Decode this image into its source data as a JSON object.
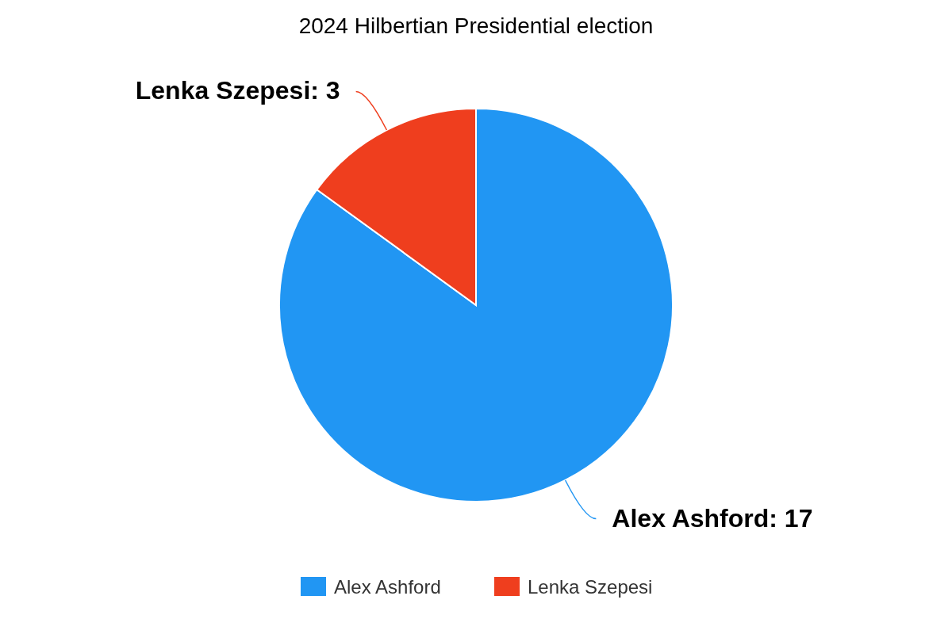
{
  "chart_data": {
    "type": "pie",
    "title": "2024 Hilbertian Presidential election",
    "categories": [
      "Alex Ashford",
      "Lenka Szepesi"
    ],
    "values": [
      17,
      3
    ],
    "colors": [
      "#2196f3",
      "#ef3e1e"
    ],
    "value_labels": [
      "Alex Ashford: 17",
      "Lenka Szepesi: 3"
    ],
    "legend": "bottom"
  }
}
